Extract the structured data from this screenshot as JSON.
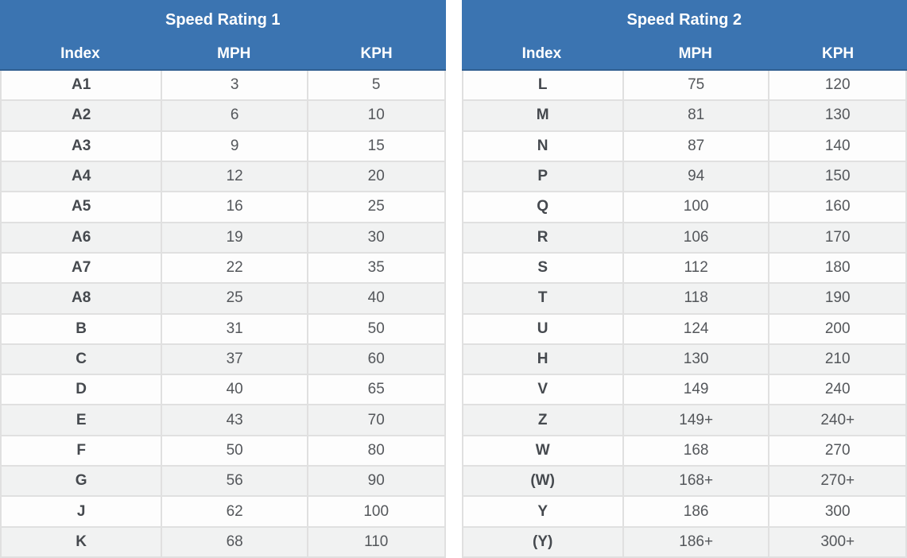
{
  "chart_data": [
    {
      "type": "table",
      "title": "Speed Rating 1",
      "columns": [
        "Index",
        "MPH",
        "KPH"
      ],
      "rows": [
        [
          "A1",
          "3",
          "5"
        ],
        [
          "A2",
          "6",
          "10"
        ],
        [
          "A3",
          "9",
          "15"
        ],
        [
          "A4",
          "12",
          "20"
        ],
        [
          "A5",
          "16",
          "25"
        ],
        [
          "A6",
          "19",
          "30"
        ],
        [
          "A7",
          "22",
          "35"
        ],
        [
          "A8",
          "25",
          "40"
        ],
        [
          "B",
          "31",
          "50"
        ],
        [
          "C",
          "37",
          "60"
        ],
        [
          "D",
          "40",
          "65"
        ],
        [
          "E",
          "43",
          "70"
        ],
        [
          "F",
          "50",
          "80"
        ],
        [
          "G",
          "56",
          "90"
        ],
        [
          "J",
          "62",
          "100"
        ],
        [
          "K",
          "68",
          "110"
        ]
      ]
    },
    {
      "type": "table",
      "title": "Speed Rating 2",
      "columns": [
        "Index",
        "MPH",
        "KPH"
      ],
      "rows": [
        [
          "L",
          "75",
          "120"
        ],
        [
          "M",
          "81",
          "130"
        ],
        [
          "N",
          "87",
          "140"
        ],
        [
          "P",
          "94",
          "150"
        ],
        [
          "Q",
          "100",
          "160"
        ],
        [
          "R",
          "106",
          "170"
        ],
        [
          "S",
          "112",
          "180"
        ],
        [
          "T",
          "118",
          "190"
        ],
        [
          "U",
          "124",
          "200"
        ],
        [
          "H",
          "130",
          "210"
        ],
        [
          "V",
          "149",
          "240"
        ],
        [
          "Z",
          "149+",
          "240+"
        ],
        [
          "W",
          "168",
          "270"
        ],
        [
          "(W)",
          "168+",
          "270+"
        ],
        [
          "Y",
          "186",
          "300"
        ],
        [
          "(Y)",
          "186+",
          "300+"
        ]
      ]
    }
  ],
  "style": {
    "header_bg": "#3b74b1",
    "header_text": "#ffffff",
    "row_bg": "#fdfdfd",
    "row_alt_bg": "#f1f2f2",
    "border_color": "#e0e0e0",
    "index_text": "#45494e",
    "value_text": "#54575b"
  }
}
